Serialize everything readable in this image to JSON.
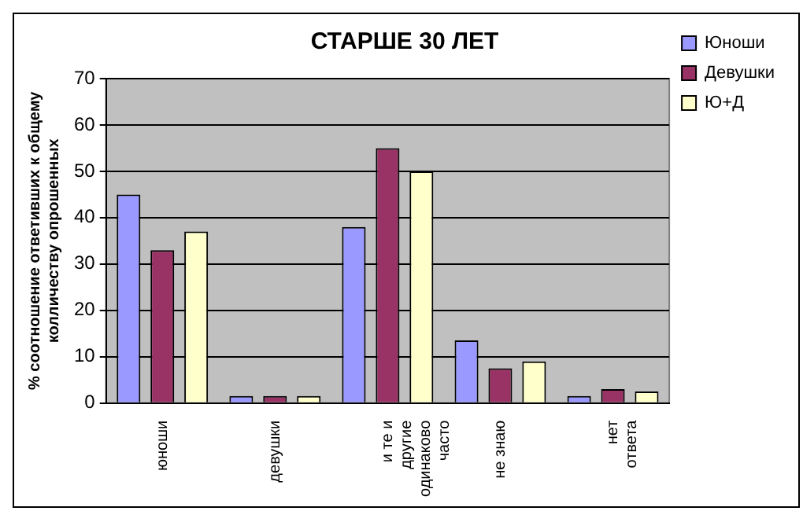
{
  "chart_data": {
    "type": "bar",
    "title": "СТАРШЕ 30 ЛЕТ",
    "ylabel": "% соотношение ответивших к общему колличеству опрошенных",
    "categories": [
      "юноши",
      "девушки",
      "и те и другие одинаково часто",
      "не знаю",
      "нет ответа"
    ],
    "series": [
      {
        "name": "Юноши",
        "color": "#9999ff",
        "values": [
          45,
          1.5,
          38,
          13.5,
          1.5
        ]
      },
      {
        "name": "Девушки",
        "color": "#993366",
        "values": [
          33,
          1.5,
          55,
          7.5,
          3
        ]
      },
      {
        "name": "Ю+Д",
        "color": "#ffffcc",
        "values": [
          37,
          1.5,
          50,
          9,
          2.5
        ]
      }
    ],
    "ylim": [
      0,
      70
    ],
    "yticks": [
      0,
      10,
      20,
      30,
      40,
      50,
      60,
      70
    ],
    "grid": "y",
    "legend": "top right"
  }
}
